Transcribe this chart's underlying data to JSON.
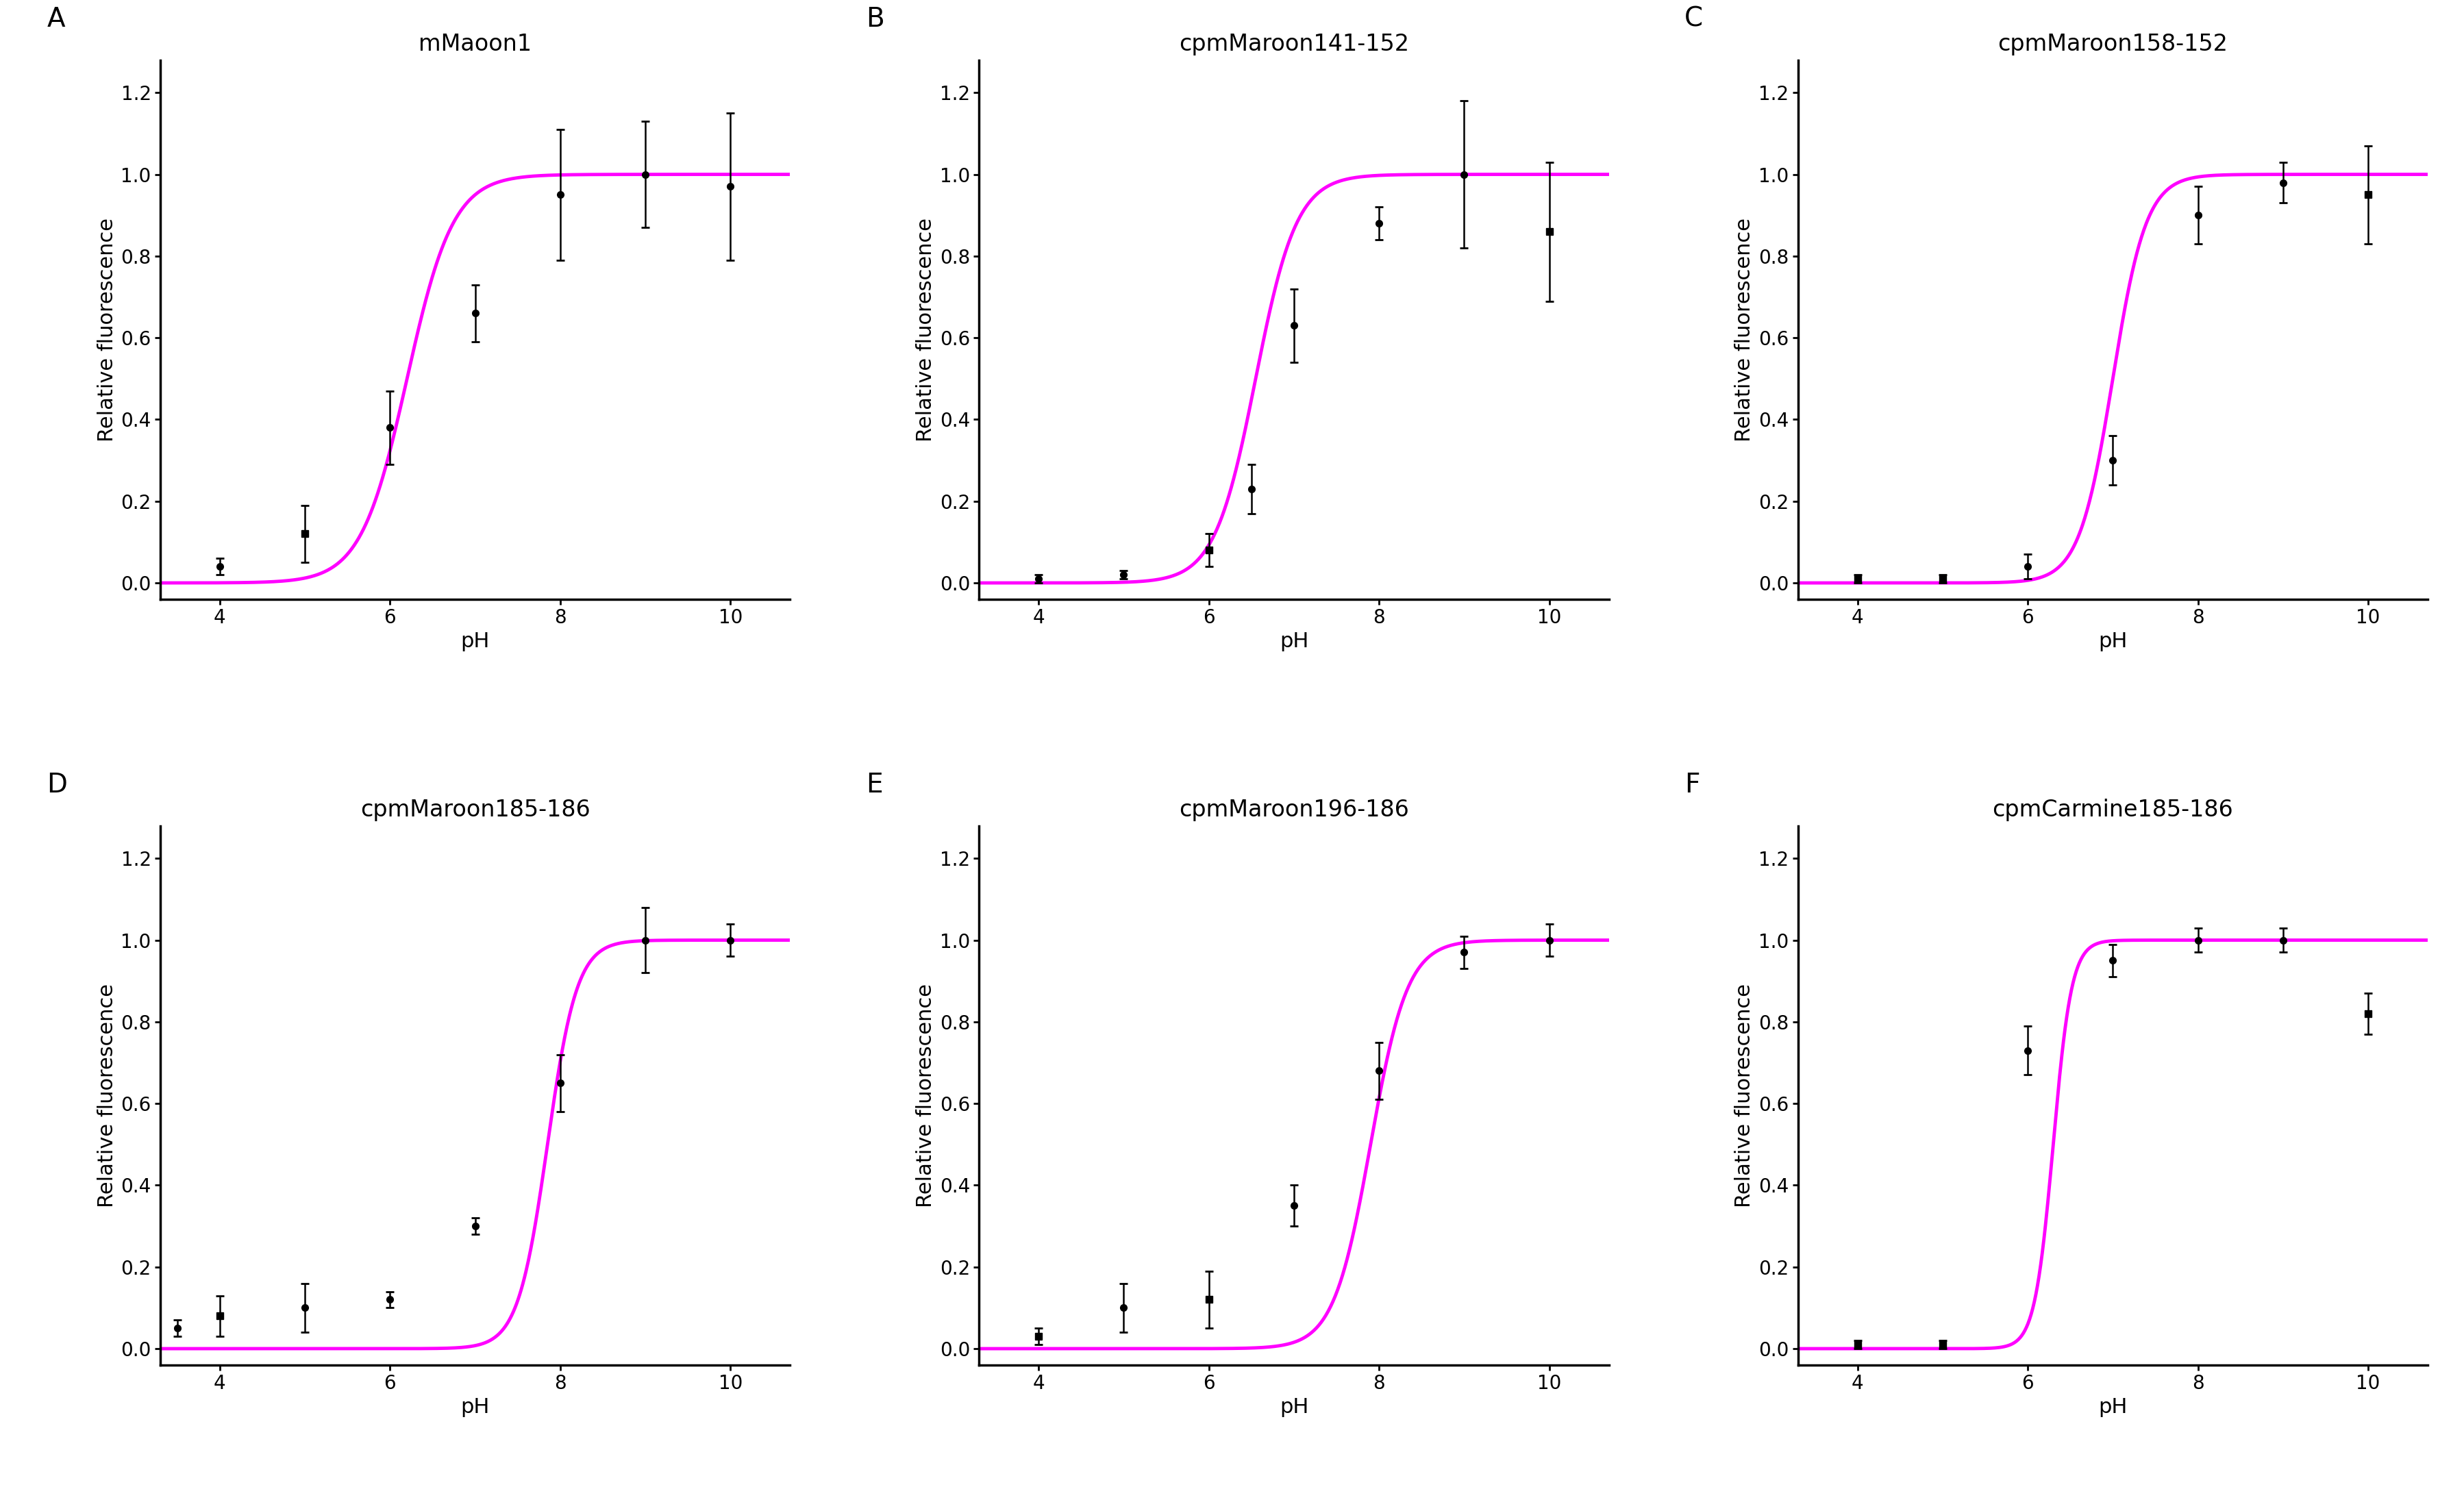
{
  "panels": [
    {
      "label": "A",
      "title": "mMaoon1",
      "pka": 6.2,
      "hill": 1.6,
      "data_x": [
        4.0,
        5.0,
        6.0,
        7.0,
        8.0,
        9.0,
        10.0
      ],
      "data_y": [
        0.04,
        0.12,
        0.38,
        0.66,
        0.95,
        1.0,
        0.97
      ],
      "data_yerr": [
        0.02,
        0.07,
        0.09,
        0.07,
        0.16,
        0.13,
        0.18
      ],
      "markers": [
        "o",
        "s",
        "o",
        "o",
        "o",
        "o",
        "o"
      ]
    },
    {
      "label": "B",
      "title": "cpmMaroon141-152",
      "pka": 6.55,
      "hill": 1.8,
      "data_x": [
        4.0,
        5.0,
        6.0,
        6.5,
        7.0,
        8.0,
        9.0,
        10.0
      ],
      "data_y": [
        0.01,
        0.02,
        0.08,
        0.23,
        0.63,
        0.88,
        1.0,
        0.86
      ],
      "data_yerr": [
        0.01,
        0.01,
        0.04,
        0.06,
        0.09,
        0.04,
        0.18,
        0.17
      ],
      "markers": [
        "o",
        "o",
        "s",
        "o",
        "o",
        "o",
        "o",
        "s"
      ]
    },
    {
      "label": "C",
      "title": "cpmMaroon158-152",
      "pka": 7.0,
      "hill": 2.2,
      "data_x": [
        4.0,
        5.0,
        6.0,
        7.0,
        8.0,
        9.0,
        10.0
      ],
      "data_y": [
        0.01,
        0.01,
        0.04,
        0.3,
        0.9,
        0.98,
        0.95
      ],
      "data_yerr": [
        0.01,
        0.01,
        0.03,
        0.06,
        0.07,
        0.05,
        0.12
      ],
      "markers": [
        "s",
        "s",
        "o",
        "o",
        "o",
        "o",
        "s"
      ]
    },
    {
      "label": "D",
      "title": "cpmMaroon185-186",
      "pka": 7.85,
      "hill": 2.5,
      "data_x": [
        3.5,
        4.0,
        5.0,
        6.0,
        7.0,
        8.0,
        9.0,
        10.0
      ],
      "data_y": [
        0.05,
        0.08,
        0.1,
        0.12,
        0.3,
        0.65,
        1.0,
        1.0
      ],
      "data_yerr": [
        0.02,
        0.05,
        0.06,
        0.02,
        0.02,
        0.07,
        0.08,
        0.04
      ],
      "markers": [
        "o",
        "s",
        "o",
        "o",
        "o",
        "o",
        "o",
        "o"
      ]
    },
    {
      "label": "E",
      "title": "cpmMaroon196-186",
      "pka": 7.9,
      "hill": 2.0,
      "data_x": [
        4.0,
        5.0,
        6.0,
        7.0,
        8.0,
        9.0,
        10.0
      ],
      "data_y": [
        0.03,
        0.1,
        0.12,
        0.35,
        0.68,
        0.97,
        1.0
      ],
      "data_yerr": [
        0.02,
        0.06,
        0.07,
        0.05,
        0.07,
        0.04,
        0.04
      ],
      "markers": [
        "s",
        "o",
        "s",
        "o",
        "o",
        "o",
        "o"
      ]
    },
    {
      "label": "F",
      "title": "cpmCarmine185-186",
      "pka": 6.3,
      "hill": 4.0,
      "data_x": [
        4.0,
        5.0,
        6.0,
        7.0,
        8.0,
        9.0,
        10.0
      ],
      "data_y": [
        0.01,
        0.01,
        0.73,
        0.95,
        1.0,
        1.0,
        0.82
      ],
      "data_yerr": [
        0.01,
        0.01,
        0.06,
        0.04,
        0.03,
        0.03,
        0.05
      ],
      "markers": [
        "s",
        "s",
        "o",
        "o",
        "o",
        "o",
        "s"
      ]
    }
  ],
  "curve_color": "#FF00FF",
  "marker_color": "black",
  "circle_size": 7,
  "square_size": 7,
  "line_width": 3.5,
  "xlabel": "pH",
  "ylabel": "Relative fluorescence",
  "xlim": [
    3.3,
    10.7
  ],
  "ylim": [
    -0.04,
    1.28
  ],
  "xticks": [
    4,
    6,
    8,
    10
  ],
  "yticks": [
    0.0,
    0.2,
    0.4,
    0.6,
    0.8,
    1.0,
    1.2
  ],
  "background_color": "#ffffff",
  "title_fontsize": 24,
  "label_fontsize": 22,
  "tick_fontsize": 20,
  "panel_label_fontsize": 28
}
